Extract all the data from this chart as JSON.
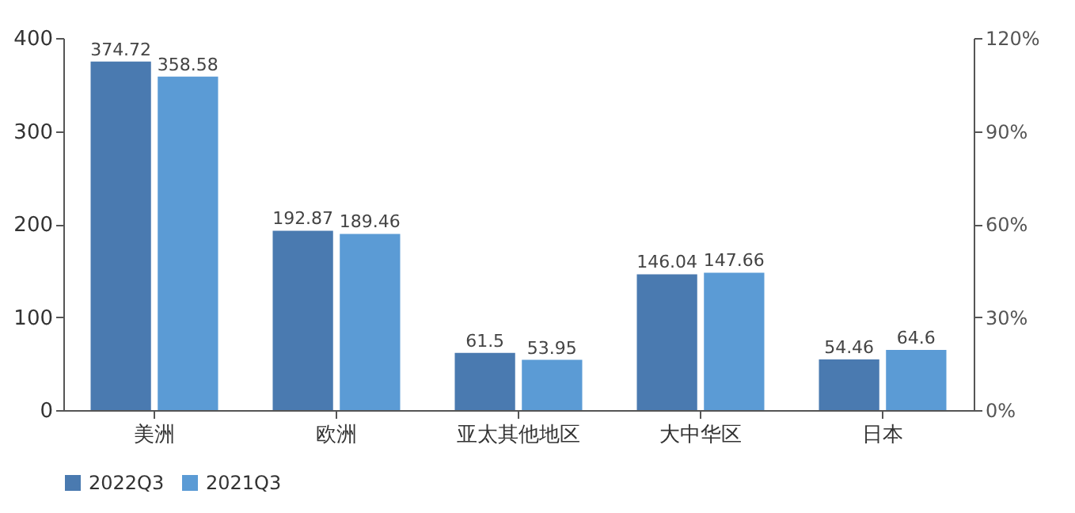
{
  "chart_data": {
    "type": "bar",
    "categories": [
      "美洲",
      "欧洲",
      "亚太其他地区",
      "大中华区",
      "日本"
    ],
    "series": [
      {
        "name": "2022Q3",
        "color": "#4a7ab0",
        "values": [
          374.72,
          192.87,
          61.5,
          146.04,
          54.46
        ]
      },
      {
        "name": "2021Q3",
        "color": "#5b9bd5",
        "values": [
          358.58,
          189.46,
          53.95,
          147.66,
          64.6
        ]
      }
    ],
    "ylim": [
      0,
      400
    ],
    "yticks": [
      0,
      100,
      200,
      300,
      400
    ],
    "y2lim": [
      0,
      120
    ],
    "y2ticks": [
      {
        "value": 0,
        "label": "0%"
      },
      {
        "value": 30,
        "label": "30%"
      },
      {
        "value": 60,
        "label": "60%"
      },
      {
        "value": 90,
        "label": "90%"
      },
      {
        "value": 120,
        "label": "120%"
      }
    ],
    "data_labels": true,
    "legend": "bottom left",
    "grid": false
  }
}
